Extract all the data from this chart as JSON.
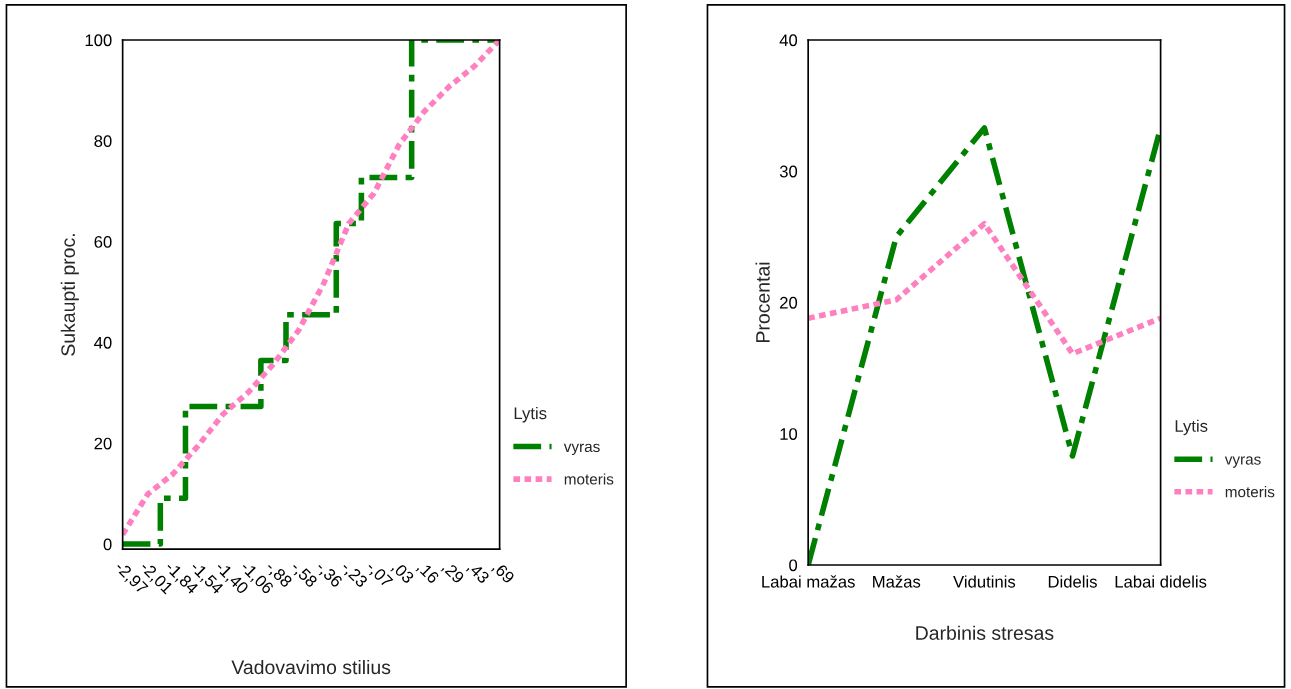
{
  "chart_data": [
    {
      "type": "line",
      "xlabel": "Vadovavimo stilius",
      "ylabel": "Sukaupti proc.",
      "legend_title": "Lytis",
      "legend": "right",
      "categories": [
        "-2,97",
        "-2,01",
        "-1,84",
        "-1,54",
        "-1,40",
        "-1,06",
        "-,88",
        "-,58",
        "-,36",
        "-,23",
        "-,07",
        ",03",
        ",16",
        ",29",
        ",43",
        ",69"
      ],
      "ylim": [
        -1,
        100
      ],
      "yticks": [
        0,
        20,
        40,
        60,
        80,
        100
      ],
      "grid": false,
      "series": [
        {
          "name": "vyras",
          "color": "#008000",
          "type": "step",
          "line_style": "dashdot",
          "values": [
            0,
            0,
            9.1,
            27.3,
            27.3,
            27.3,
            36.4,
            45.5,
            45.5,
            63.6,
            72.7,
            72.7,
            100,
            100,
            100,
            100
          ]
        },
        {
          "name": "moteris",
          "color": "#ff80c0",
          "type": "line",
          "line_style": "dotted",
          "values": [
            1.9,
            9.9,
            13.9,
            19.5,
            25.8,
            30.1,
            35.7,
            42.4,
            51.7,
            63.6,
            69.6,
            79.2,
            85.8,
            90.8,
            94.8,
            100
          ]
        }
      ]
    },
    {
      "type": "line",
      "xlabel": "Darbinis stresas",
      "ylabel": "Procentai",
      "legend_title": "Lytis",
      "legend": "right",
      "categories": [
        "Labai mažas",
        "Mažas",
        "Vidutinis",
        "Didelis",
        "Labai didelis"
      ],
      "ylim": [
        0,
        40
      ],
      "yticks": [
        0,
        10,
        20,
        30,
        40
      ],
      "grid": false,
      "series": [
        {
          "name": "vyras",
          "color": "#008000",
          "line_style": "dashdot",
          "values": [
            0,
            25,
            33.3,
            8.3,
            33.3
          ]
        },
        {
          "name": "moteris",
          "color": "#ff80c0",
          "line_style": "dotted",
          "values": [
            18.8,
            20.2,
            26.0,
            16.1,
            18.8
          ]
        }
      ]
    }
  ]
}
